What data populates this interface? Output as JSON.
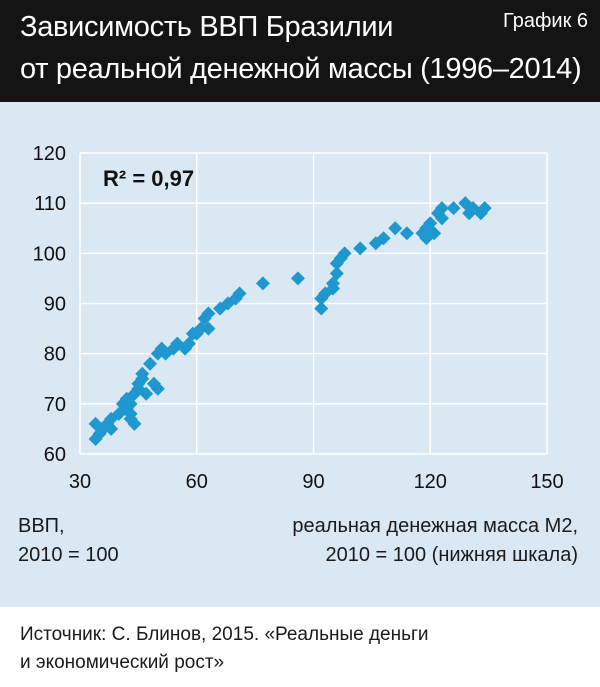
{
  "header": {
    "title_line1": "Зависимость ВВП Бразилии",
    "title_line2": "от реальной денежной массы (1996–2014)",
    "graph_label": "График 6"
  },
  "colors": {
    "header_bg": "#141414",
    "plot_bg": "#d9e8f2",
    "marker": "#1f97cf",
    "grid": "#ffffff"
  },
  "annotation": {
    "r2_label": "R² = 0,97"
  },
  "captions": {
    "y_line1": "ВВП,",
    "y_line2": "2010 = 100",
    "x_line1": "реальная денежная масса М2,",
    "x_line2": "2010 = 100 (нижняя шкала)"
  },
  "source": {
    "line1": "Источник: С. Блинов, 2015. «Реальные деньги",
    "line2": "и экономический рост»"
  },
  "chart_data": {
    "type": "scatter",
    "xlim": [
      30,
      150
    ],
    "ylim": [
      60,
      120
    ],
    "x_ticks": [
      30,
      60,
      90,
      120,
      150
    ],
    "y_ticks": [
      60,
      70,
      80,
      90,
      100,
      110,
      120
    ],
    "grid": true,
    "marker": "diamond",
    "points": [
      [
        34,
        63
      ],
      [
        34,
        66
      ],
      [
        35,
        64
      ],
      [
        36,
        65
      ],
      [
        37,
        66
      ],
      [
        38,
        67
      ],
      [
        38,
        65
      ],
      [
        40,
        68
      ],
      [
        41,
        70
      ],
      [
        42,
        71
      ],
      [
        42,
        69
      ],
      [
        43,
        68
      ],
      [
        43,
        67
      ],
      [
        43,
        70
      ],
      [
        44,
        72
      ],
      [
        44,
        66
      ],
      [
        45,
        73
      ],
      [
        45,
        74
      ],
      [
        46,
        75
      ],
      [
        46,
        76
      ],
      [
        47,
        72
      ],
      [
        48,
        78
      ],
      [
        49,
        74
      ],
      [
        50,
        73
      ],
      [
        50,
        80
      ],
      [
        51,
        81
      ],
      [
        52,
        80
      ],
      [
        54,
        81
      ],
      [
        55,
        82
      ],
      [
        57,
        81
      ],
      [
        58,
        82
      ],
      [
        59,
        84
      ],
      [
        60,
        84
      ],
      [
        61,
        85
      ],
      [
        62,
        87
      ],
      [
        63,
        85
      ],
      [
        63,
        88
      ],
      [
        66,
        89
      ],
      [
        68,
        90
      ],
      [
        70,
        91
      ],
      [
        71,
        92
      ],
      [
        77,
        94
      ],
      [
        86,
        95
      ],
      [
        92,
        89
      ],
      [
        92,
        91
      ],
      [
        93,
        92
      ],
      [
        95,
        93
      ],
      [
        95,
        94
      ],
      [
        96,
        96
      ],
      [
        96,
        98
      ],
      [
        97,
        99
      ],
      [
        98,
        100
      ],
      [
        102,
        101
      ],
      [
        106,
        102
      ],
      [
        108,
        103
      ],
      [
        111,
        105
      ],
      [
        114,
        104
      ],
      [
        118,
        104
      ],
      [
        119,
        105
      ],
      [
        119,
        103
      ],
      [
        120,
        106
      ],
      [
        121,
        104
      ],
      [
        122,
        108
      ],
      [
        123,
        107
      ],
      [
        123,
        109
      ],
      [
        126,
        109
      ],
      [
        129,
        110
      ],
      [
        130,
        108
      ],
      [
        131,
        109
      ],
      [
        133,
        108
      ],
      [
        134,
        109
      ]
    ],
    "r_squared": "0,97"
  }
}
